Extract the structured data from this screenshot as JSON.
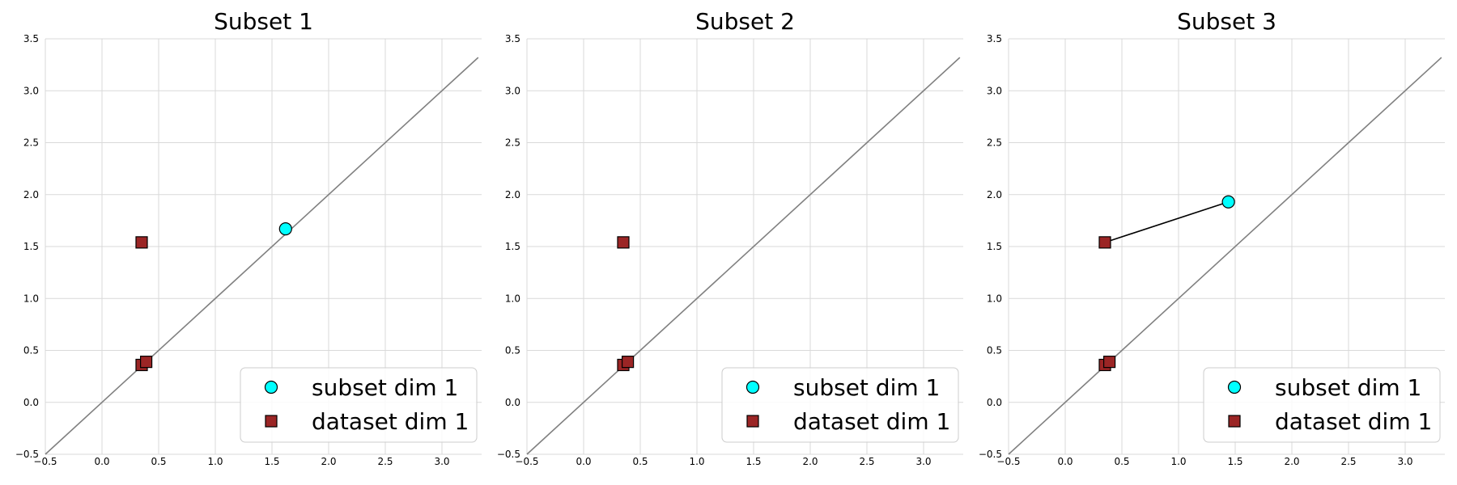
{
  "colors": {
    "subset_marker": "#00ffff",
    "dataset_marker": "#9b2525",
    "diagonal": "#808080",
    "grid": "#d9d9d9",
    "link": "#000000"
  },
  "chart_data": [
    {
      "type": "scatter",
      "title": "Subset 1",
      "xlim": [
        -0.5,
        3.35
      ],
      "ylim": [
        -0.5,
        3.5
      ],
      "xticks": [
        "−0.5",
        "0.0",
        "0.5",
        "1.0",
        "1.5",
        "2.0",
        "2.5",
        "3.0"
      ],
      "yticks": [
        "−0.5",
        "0.0",
        "0.5",
        "1.0",
        "1.5",
        "2.0",
        "2.5",
        "3.0",
        "3.5"
      ],
      "grid": true,
      "legend_position": "lower-right",
      "diagonal": [
        [
          -0.5,
          -0.5
        ],
        [
          3.32,
          3.32
        ]
      ],
      "series": [
        {
          "name": "subset dim 1",
          "marker": "circle",
          "points": [
            [
              1.62,
              1.67
            ]
          ]
        },
        {
          "name": "dataset dim 1",
          "marker": "square",
          "points": [
            [
              0.35,
              1.54
            ],
            [
              0.35,
              0.36
            ],
            [
              0.39,
              0.39
            ]
          ]
        }
      ],
      "links": []
    },
    {
      "type": "scatter",
      "title": "Subset 2",
      "xlim": [
        -0.5,
        3.35
      ],
      "ylim": [
        -0.5,
        3.5
      ],
      "xticks": [
        "−0.5",
        "0.0",
        "0.5",
        "1.0",
        "1.5",
        "2.0",
        "2.5",
        "3.0"
      ],
      "yticks": [
        "−0.5",
        "0.0",
        "0.5",
        "1.0",
        "1.5",
        "2.0",
        "2.5",
        "3.0",
        "3.5"
      ],
      "grid": true,
      "legend_position": "lower-right",
      "diagonal": [
        [
          -0.5,
          -0.5
        ],
        [
          3.32,
          3.32
        ]
      ],
      "series": [
        {
          "name": "subset dim 1",
          "marker": "circle",
          "points": []
        },
        {
          "name": "dataset dim 1",
          "marker": "square",
          "points": [
            [
              0.35,
              1.54
            ],
            [
              0.35,
              0.36
            ],
            [
              0.39,
              0.39
            ]
          ]
        }
      ],
      "links": []
    },
    {
      "type": "scatter",
      "title": "Subset 3",
      "xlim": [
        -0.5,
        3.35
      ],
      "ylim": [
        -0.5,
        3.5
      ],
      "xticks": [
        "−0.5",
        "0.0",
        "0.5",
        "1.0",
        "1.5",
        "2.0",
        "2.5",
        "3.0"
      ],
      "yticks": [
        "−0.5",
        "0.0",
        "0.5",
        "1.0",
        "1.5",
        "2.0",
        "2.5",
        "3.0",
        "3.5"
      ],
      "grid": true,
      "legend_position": "lower-right",
      "diagonal": [
        [
          -0.5,
          -0.5
        ],
        [
          3.32,
          3.32
        ]
      ],
      "series": [
        {
          "name": "subset dim 1",
          "marker": "circle",
          "points": [
            [
              1.44,
              1.93
            ]
          ]
        },
        {
          "name": "dataset dim 1",
          "marker": "square",
          "points": [
            [
              0.35,
              1.54
            ],
            [
              0.35,
              0.36
            ],
            [
              0.39,
              0.39
            ]
          ]
        }
      ],
      "links": [
        [
          [
            0.35,
            1.54
          ],
          [
            1.44,
            1.93
          ]
        ]
      ]
    }
  ]
}
